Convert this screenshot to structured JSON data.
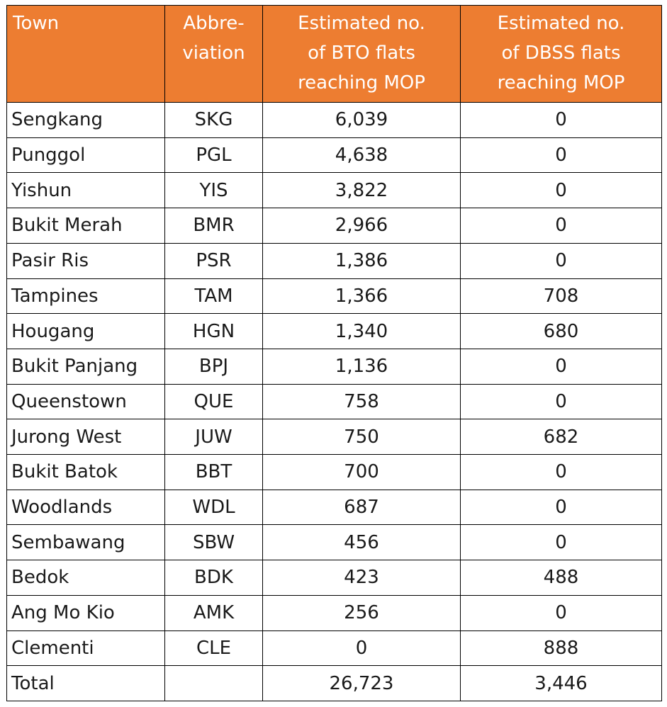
{
  "headers": {
    "town": "Town",
    "abbr_line1": "Abbre-",
    "abbr_line2": "viation",
    "bto_line1": "Estimated no.",
    "bto_line2": "of BTO flats",
    "bto_line3": "reaching MOP",
    "dbss_line1": "Estimated no.",
    "dbss_line2": "of DBSS flats",
    "dbss_line3": "reaching MOP"
  },
  "rows": [
    {
      "town": "Sengkang",
      "abbr": "SKG",
      "bto": "6,039",
      "dbss": "0"
    },
    {
      "town": "Punggol",
      "abbr": "PGL",
      "bto": "4,638",
      "dbss": "0"
    },
    {
      "town": "Yishun",
      "abbr": "YIS",
      "bto": "3,822",
      "dbss": "0"
    },
    {
      "town": "Bukit Merah",
      "abbr": "BMR",
      "bto": "2,966",
      "dbss": "0"
    },
    {
      "town": "Pasir Ris",
      "abbr": "PSR",
      "bto": "1,386",
      "dbss": "0"
    },
    {
      "town": "Tampines",
      "abbr": "TAM",
      "bto": "1,366",
      "dbss": "708"
    },
    {
      "town": "Hougang",
      "abbr": "HGN",
      "bto": "1,340",
      "dbss": "680"
    },
    {
      "town": "Bukit Panjang",
      "abbr": "BPJ",
      "bto": "1,136",
      "dbss": "0"
    },
    {
      "town": "Queenstown",
      "abbr": "QUE",
      "bto": "758",
      "dbss": "0"
    },
    {
      "town": "Jurong West",
      "abbr": "JUW",
      "bto": "750",
      "dbss": "682"
    },
    {
      "town": "Bukit Batok",
      "abbr": "BBT",
      "bto": "700",
      "dbss": "0"
    },
    {
      "town": "Woodlands",
      "abbr": "WDL",
      "bto": "687",
      "dbss": "0"
    },
    {
      "town": "Sembawang",
      "abbr": "SBW",
      "bto": "456",
      "dbss": "0"
    },
    {
      "town": "Bedok",
      "abbr": "BDK",
      "bto": "423",
      "dbss": "488"
    },
    {
      "town": "Ang Mo Kio",
      "abbr": "AMK",
      "bto": "256",
      "dbss": "0"
    },
    {
      "town": "Clementi",
      "abbr": "CLE",
      "bto": "0",
      "dbss": "888"
    }
  ],
  "total": {
    "label": "Total",
    "abbr": "",
    "bto": "26,723",
    "dbss": "3,446"
  },
  "colors": {
    "header_bg": "#ED7D31",
    "header_text": "#FFFFFF",
    "border": "#000000"
  }
}
